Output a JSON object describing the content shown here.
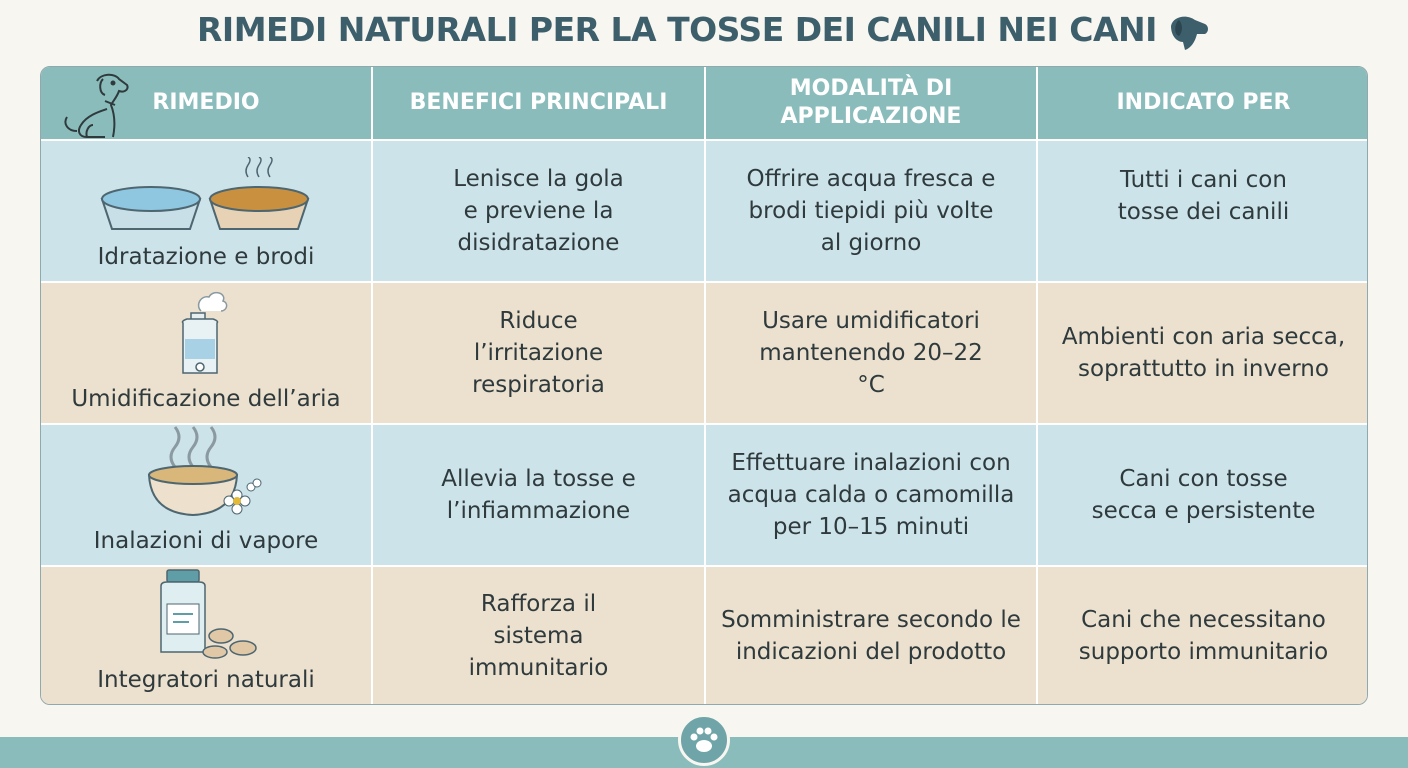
{
  "header": {
    "title": "RIMEDI NATURALI PER LA TOSSE DEI CANILI NEI CANI"
  },
  "table": {
    "columns": [
      "RIMEDIO",
      "BENEFICI PRINCIPALI",
      "MODALITÀ DI APPLICAZIONE",
      "INDICATO PER"
    ],
    "rows": [
      [
        "Idratazione e brodi",
        "Lenisce la gola e previene la disidratazione",
        "Offrire acqua fresca e brodi tiepidi più volte al giorno",
        "Tutti i cani con tosse dei canili"
      ],
      [
        "Umidificazione dell’aria",
        "Riduce l’irritazione respiratoria",
        "Usare umidificatori mantenendo 20–22 °C",
        "Ambienti con aria secca, soprattutto in inverno"
      ],
      [
        "Inalazioni di vapore",
        "Allevia la tosse e l’infiammazione",
        "Effettuare inalazioni con acqua calda o camomilla per 10–15 minuti",
        "Cani con tosse secca e persistente"
      ],
      [
        "Integratori naturali",
        "Rafforza il sistema immunitario",
        "Somministrare secondo le indicazioni del prodotto",
        "Cani che necessitano supporto immunitario"
      ]
    ]
  }
}
